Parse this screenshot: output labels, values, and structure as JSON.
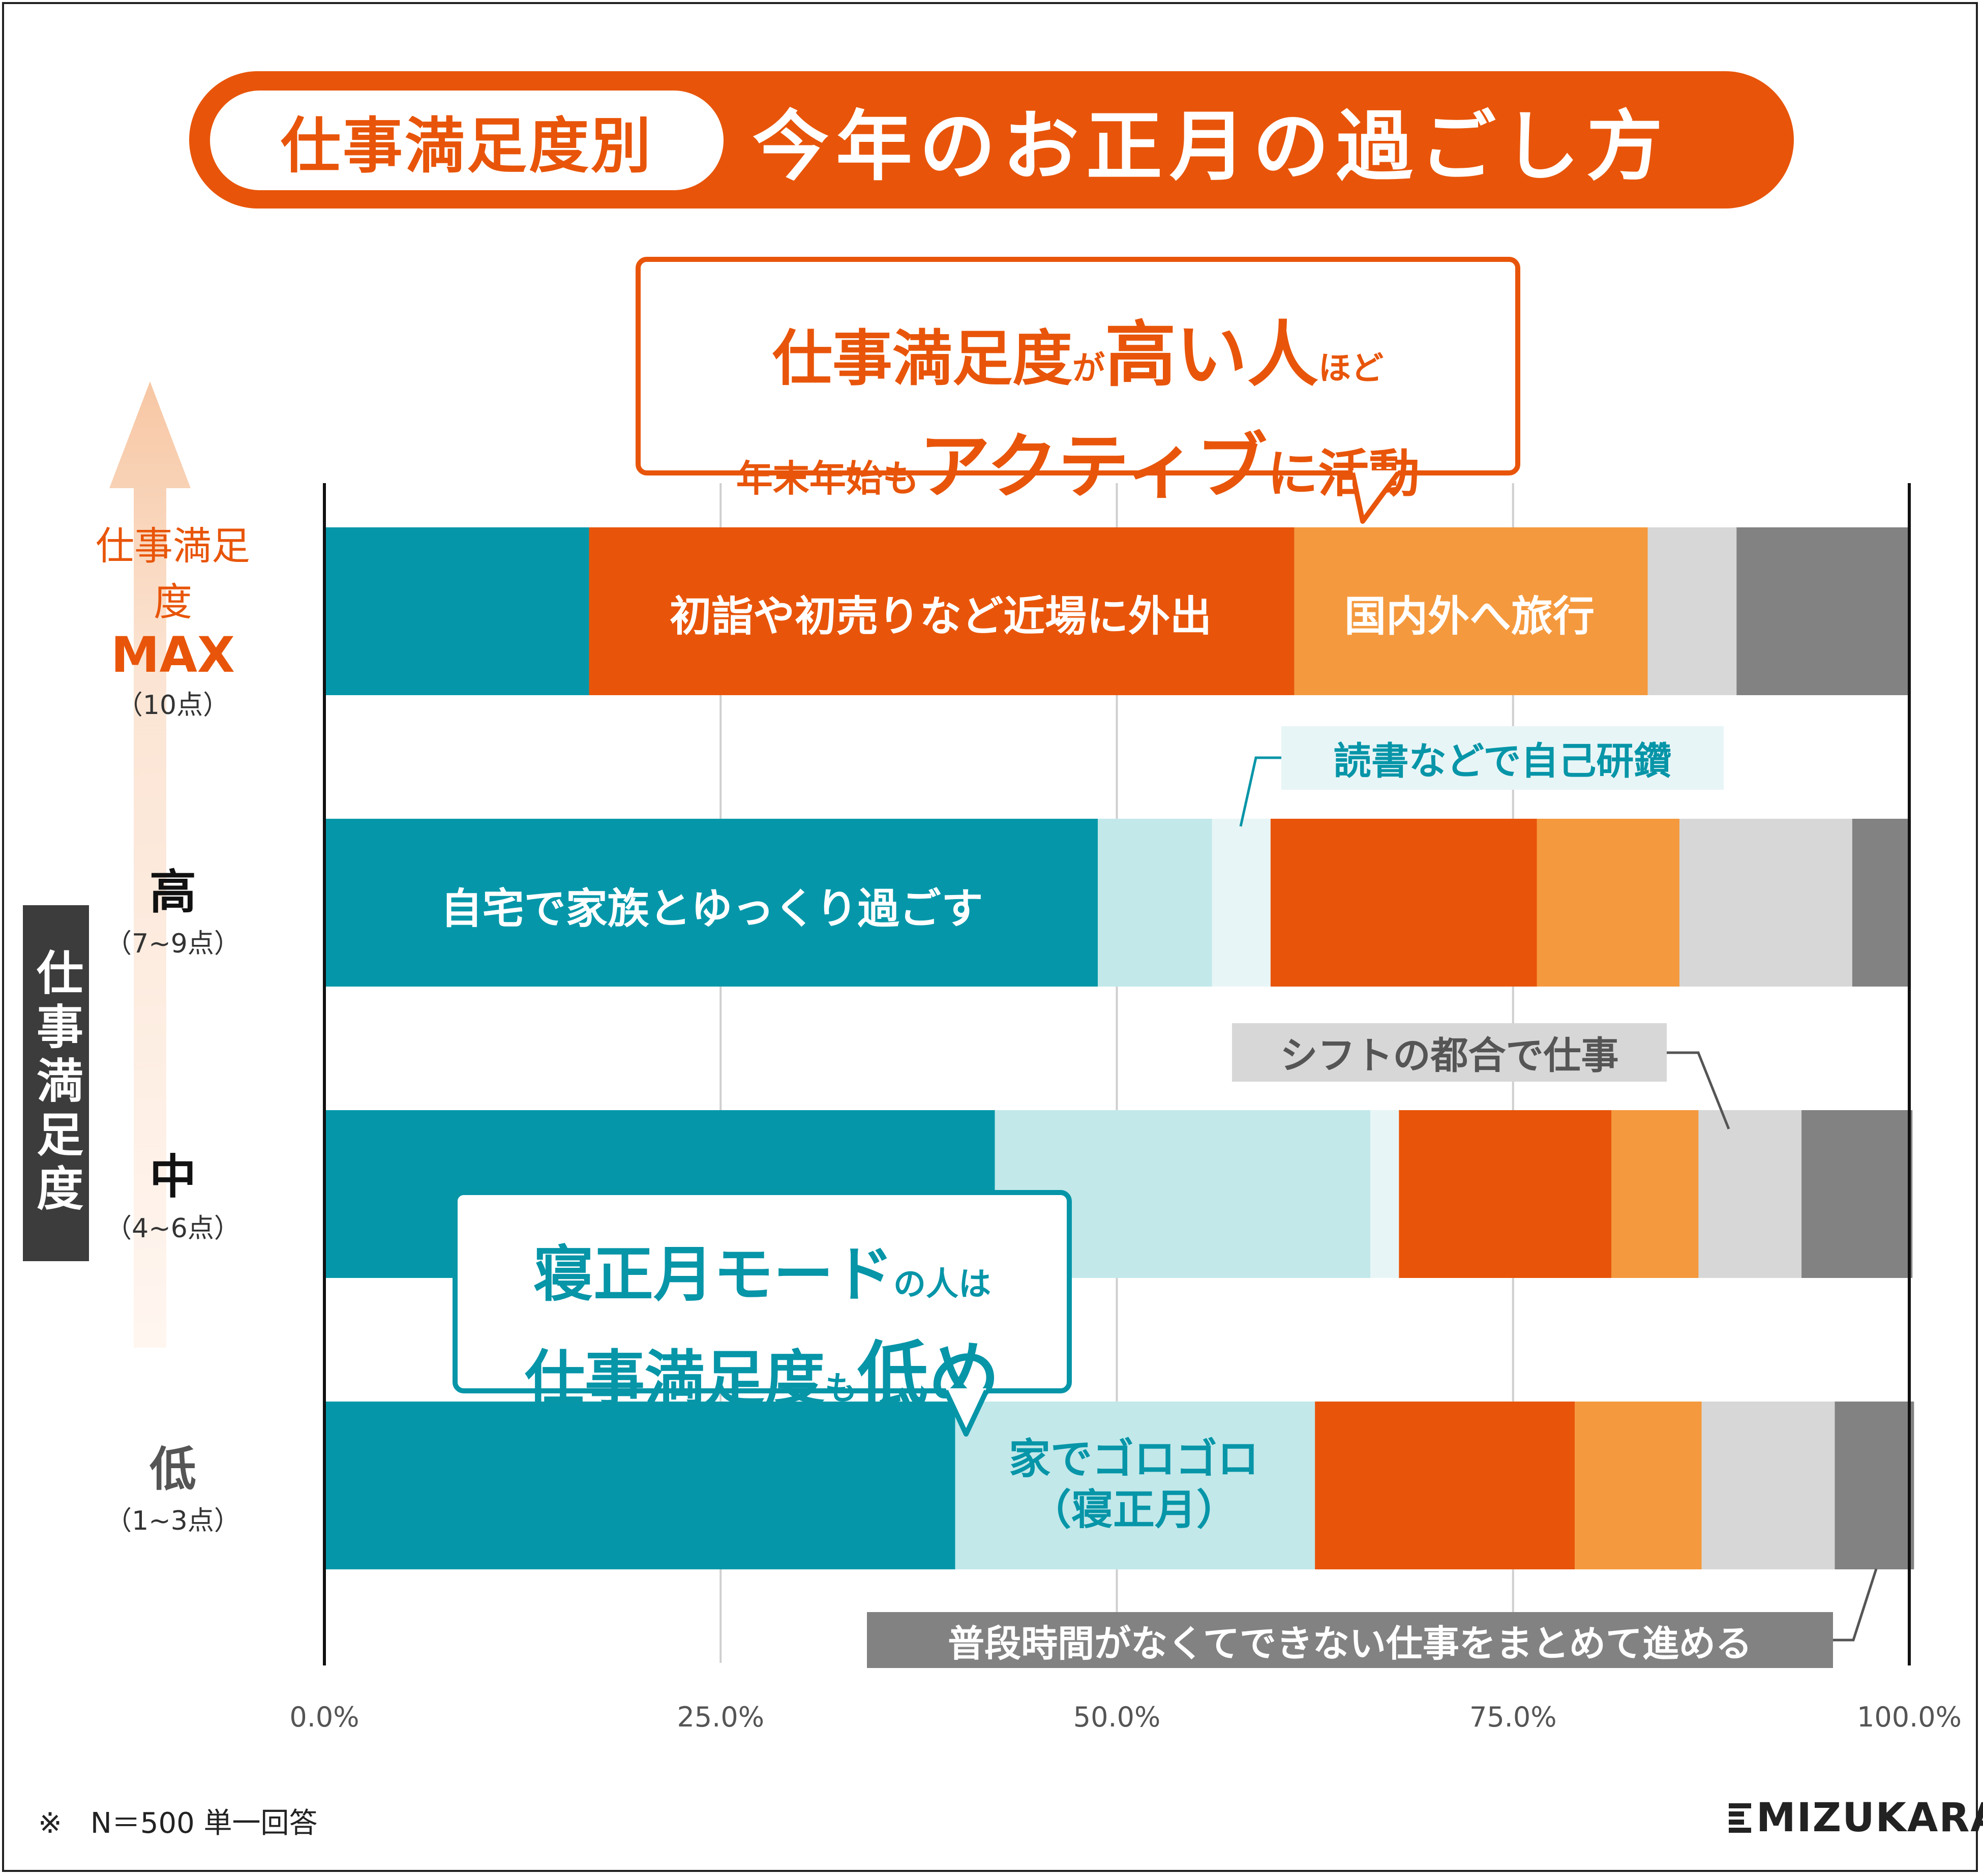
{
  "title": {
    "tag": "仕事満足度別",
    "main": "今年のお正月の過ごし方"
  },
  "callouts": {
    "top": {
      "line1_a": "仕事満足度",
      "line1_b": "が",
      "line1_c": "高い人",
      "line1_d": "ほど",
      "line2_a": "年末年始も",
      "line2_b": "アクティブ",
      "line2_c": "に活動"
    },
    "bottom": {
      "line1_a": "寝正月モード",
      "line1_b": "の人は",
      "line2_a": "仕事満足度",
      "line2_b": "も",
      "line2_c": "低め"
    }
  },
  "y_axis": {
    "side_label": "仕事満足度",
    "rows": [
      {
        "label_top": "仕事満足度",
        "label_main": "MAX",
        "points": "（10点）"
      },
      {
        "label_main": "高",
        "points": "（7~9点）"
      },
      {
        "label_main": "中",
        "points": "（4~6点）"
      },
      {
        "label_main": "低",
        "points": "（1~3点）"
      }
    ]
  },
  "segment_labels": {
    "outing": "初詣や初売りなど近場に外出",
    "travel": "国内外へ旅行",
    "family": "自宅で家族とゆっくり過ごす",
    "study": "読書などで自己研鑽",
    "shift": "シフトの都合で仕事",
    "lazy_1": "家でゴロゴロ",
    "lazy_2": "（寝正月）",
    "work": "普段時間がなくてできない仕事をまとめて進める"
  },
  "footnote": "※　N＝500 単一回答",
  "brand": "MIZUKARA",
  "colors": {
    "family": "#0597a9",
    "lazy": "#c2e8ea",
    "study": "#e8f5f6",
    "outing": "#e8550a",
    "travel": "#f4993e",
    "shift": "#d7d7d7",
    "work": "#828282"
  },
  "chart_data": {
    "type": "bar",
    "orientation": "horizontal",
    "stacked": true,
    "categories": [
      "仕事満足度MAX（10点）",
      "高（7~9点）",
      "中（4~6点）",
      "低（1~3点）"
    ],
    "series": [
      {
        "name": "自宅で家族とゆっくり過ごす",
        "color": "#0597a9",
        "values": [
          16.7,
          48.8,
          42.3,
          39.8
        ]
      },
      {
        "name": "家でゴロゴロ（寝正月）",
        "color": "#c2e8ea",
        "values": [
          0,
          7.2,
          23.7,
          22.7
        ]
      },
      {
        "name": "読書などで自己研鑽",
        "color": "#e8f5f6",
        "values": [
          0,
          3.7,
          1.8,
          0
        ]
      },
      {
        "name": "初詣や初売りなど近場に外出",
        "color": "#e8550a",
        "values": [
          44.5,
          16.8,
          13.4,
          16.4
        ]
      },
      {
        "name": "国内外へ旅行",
        "color": "#f4993e",
        "values": [
          22.3,
          9.0,
          5.5,
          8.0
        ]
      },
      {
        "name": "シフトの都合で仕事",
        "color": "#d7d7d7",
        "values": [
          5.6,
          10.9,
          6.5,
          8.4
        ]
      },
      {
        "name": "普段時間がなくてできない仕事をまとめて進める",
        "color": "#828282",
        "values": [
          10.9,
          3.7,
          7.0,
          5.0
        ]
      }
    ],
    "xlim": [
      0,
      100
    ],
    "x_ticks": [
      "0.0%",
      "25.0%",
      "50.0%",
      "75.0%",
      "100.0%"
    ],
    "grid": true
  }
}
